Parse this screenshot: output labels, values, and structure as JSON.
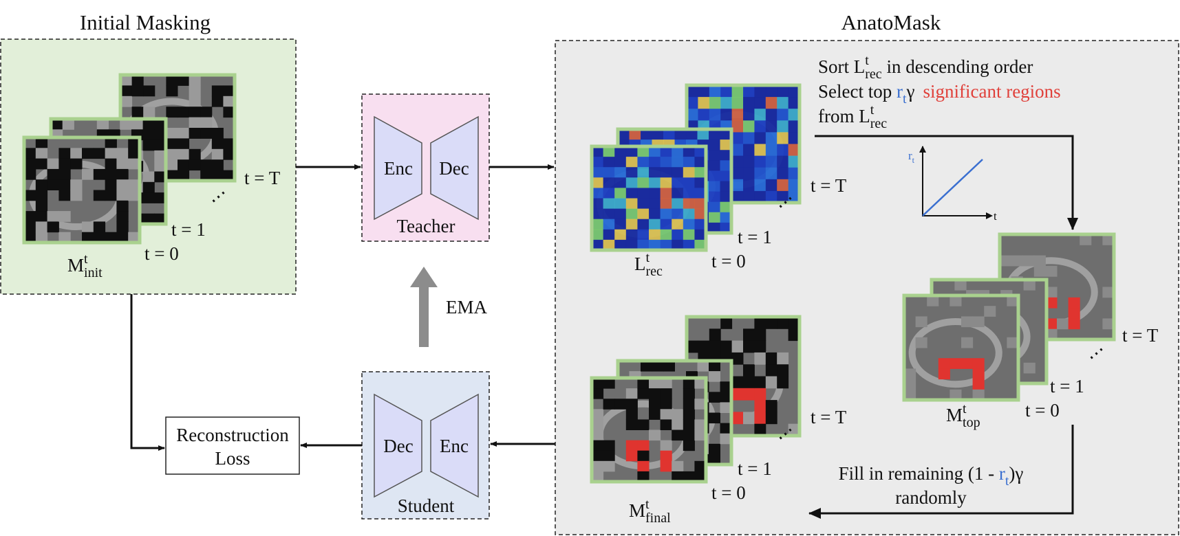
{
  "initial_masking": {
    "title": "Initial Masking",
    "label": {
      "base": "M",
      "sup": "t",
      "sub": "init"
    },
    "steps": [
      "t = T",
      "t = 1",
      "t = 0"
    ],
    "ellipsis": "⋯"
  },
  "teacher": {
    "enc": "Enc",
    "dec": "Dec",
    "label": "Teacher"
  },
  "ema": "EMA",
  "student": {
    "dec": "Dec",
    "enc": "Enc",
    "label": "Student"
  },
  "loss": [
    "Reconstruction",
    "Loss"
  ],
  "anatomask": {
    "title": "AnatoMask",
    "instructions": [
      {
        "prefix": "Sort ",
        "math": {
          "base": "L",
          "sup": "t",
          "sub": "rec"
        },
        "suffix": " in descending order"
      },
      {
        "prefix": "Select top ",
        "math": {
          "base": "r",
          "sub": "t"
        },
        "middle": "γ",
        "highlight": "significant regions"
      },
      {
        "prefix": "from ",
        "math": {
          "base": "L",
          "sup": "t",
          "sub": "rec"
        }
      }
    ],
    "plot": {
      "y_label": {
        "base": "r",
        "sub": "t"
      },
      "x_label": "t"
    },
    "loss_map": {
      "label": {
        "base": "L",
        "sup": "t",
        "sub": "rec"
      },
      "steps": [
        "t = T",
        "t = 1",
        "t = 0"
      ],
      "ellipsis": "⋯"
    },
    "top_mask": {
      "label": {
        "base": "M",
        "sup": "t",
        "sub": "top"
      },
      "steps": [
        "t = T",
        "t = 1",
        "t = 0"
      ],
      "ellipsis": "⋯"
    },
    "final_mask": {
      "label": {
        "base": "M",
        "sup": "t",
        "sub": "final"
      },
      "steps": [
        "t = T",
        "t = 1",
        "t = 0"
      ],
      "ellipsis": "⋯"
    },
    "fill_text": [
      {
        "prefix": "Fill in remaining (1 - ",
        "math": {
          "base": "r",
          "sub": "t"
        },
        "suffix": ")γ"
      },
      "randomly"
    ]
  }
}
